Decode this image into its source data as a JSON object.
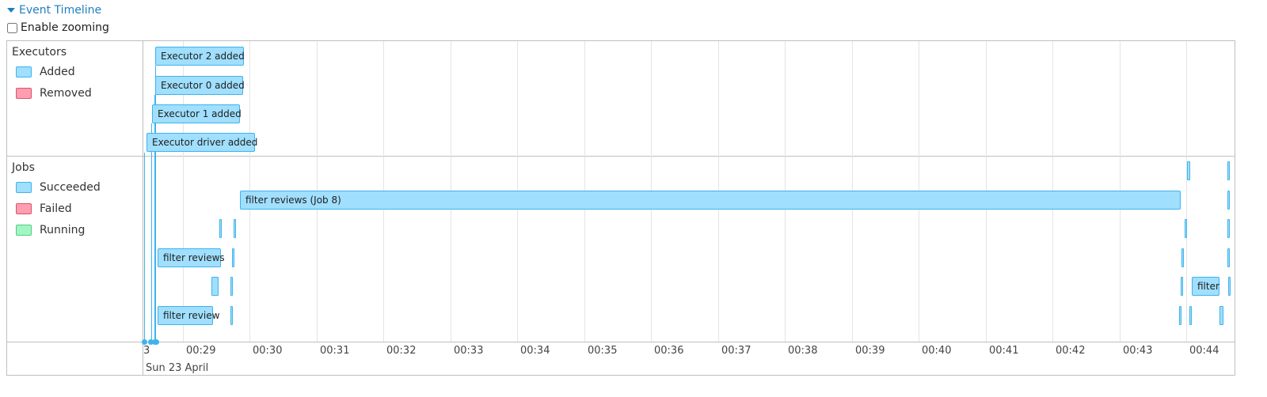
{
  "section": {
    "title": "Event Timeline",
    "expanded": true
  },
  "zoom": {
    "label": "Enable zooming",
    "checked": false
  },
  "groups": {
    "executors": {
      "title": "Executors",
      "legend": [
        {
          "label": "Added",
          "color": "#a0dffd"
        },
        {
          "label": "Removed",
          "color": "#ff9eb0"
        }
      ]
    },
    "jobs": {
      "title": "Jobs",
      "legend": [
        {
          "label": "Succeeded",
          "color": "#a0dffd"
        },
        {
          "label": "Failed",
          "color": "#ff9eb0"
        },
        {
          "label": "Running",
          "color": "#a3f5c4"
        }
      ]
    }
  },
  "executor_events": [
    {
      "label": "Executor 2 added"
    },
    {
      "label": "Executor 0 added"
    },
    {
      "label": "Executor 1 added"
    },
    {
      "label": "Executor driver added"
    }
  ],
  "job_events": [
    {
      "label": "filter reviews (Job 8)"
    },
    {
      "label": "filter reviews"
    },
    {
      "label": "filter review"
    },
    {
      "label": "filter"
    }
  ],
  "axis": {
    "ticks": [
      "3",
      "00:29",
      "00:30",
      "00:31",
      "00:32",
      "00:33",
      "00:34",
      "00:35",
      "00:36",
      "00:37",
      "00:38",
      "00:39",
      "00:40",
      "00:41",
      "00:42",
      "00:43",
      "00:44"
    ],
    "date": "Sun 23 April"
  }
}
